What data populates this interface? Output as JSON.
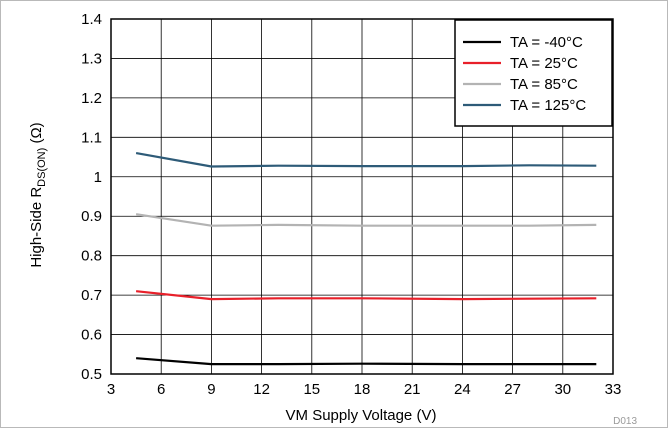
{
  "chart_data": {
    "type": "line",
    "xlabel": "VM Supply Voltage (V)",
    "ylabel_main": "High-Side R",
    "ylabel_sub": "DS(ON)",
    "ylabel_unit": " (Ω)",
    "figure_code": "D013",
    "xlim": [
      3,
      33
    ],
    "ylim": [
      0.5,
      1.4
    ],
    "x_ticks": [
      3,
      6,
      9,
      12,
      15,
      18,
      21,
      24,
      27,
      30,
      33
    ],
    "y_ticks": [
      0.5,
      0.6,
      0.7,
      0.8,
      0.9,
      1,
      1.1,
      1.2,
      1.3,
      1.4
    ],
    "y_tick_labels": [
      "0.5",
      "0.6",
      "0.7",
      "0.8",
      "0.9",
      "1",
      "1.1",
      "1.2",
      "1.3",
      "1.4"
    ],
    "grid": true,
    "legend_position": "top-right",
    "series": [
      {
        "name": "TA = -40°C",
        "color": "#000000",
        "x": [
          4.5,
          9,
          13,
          18,
          24,
          28,
          32
        ],
        "y": [
          0.54,
          0.525,
          0.525,
          0.526,
          0.525,
          0.525,
          0.525
        ]
      },
      {
        "name": "TA = 25°C",
        "color": "#e8202a",
        "x": [
          4.5,
          9,
          13,
          18,
          24,
          28,
          32
        ],
        "y": [
          0.71,
          0.69,
          0.692,
          0.692,
          0.69,
          0.691,
          0.692
        ]
      },
      {
        "name": "TA = 85°C",
        "color": "#b3b3b3",
        "x": [
          4.5,
          9,
          13,
          18,
          24,
          28,
          32
        ],
        "y": [
          0.905,
          0.876,
          0.878,
          0.876,
          0.876,
          0.876,
          0.878
        ]
      },
      {
        "name": "TA = 125°C",
        "color": "#2e5b78",
        "x": [
          4.5,
          9,
          13,
          18,
          24,
          28,
          32
        ],
        "y": [
          1.06,
          1.026,
          1.028,
          1.027,
          1.027,
          1.029,
          1.028
        ]
      }
    ]
  }
}
